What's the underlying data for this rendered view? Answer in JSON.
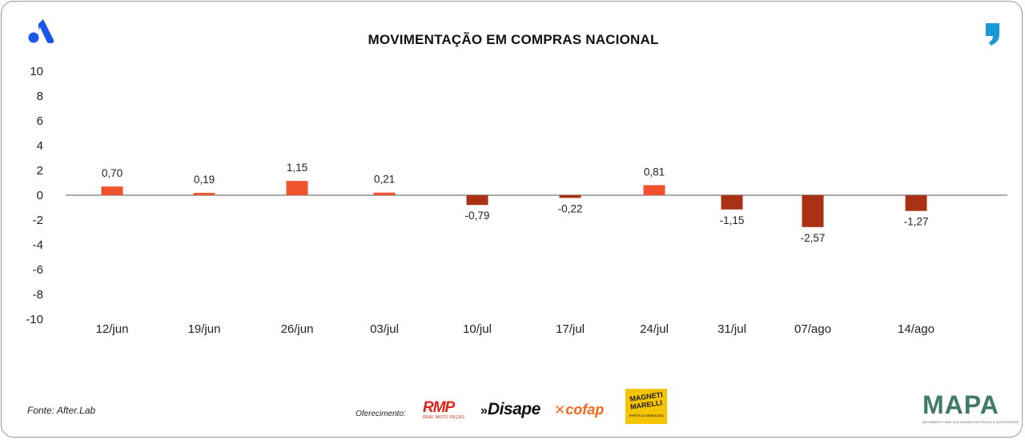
{
  "colors": {
    "positive": "#f0522d",
    "negative": "#a93214",
    "axis_line": "#777777",
    "brand_blue": "#1a57e8",
    "quote_blue": "#1b9ad7",
    "magneti_yellow": "#f4c400"
  },
  "chart_data": {
    "type": "bar",
    "title": "MOVIMENTAÇÃO EM COMPRAS NACIONAL",
    "xlabel": "",
    "ylabel": "",
    "ylim": [
      -10,
      10
    ],
    "yticks": [
      "10",
      "8",
      "6",
      "4",
      "2",
      "0",
      "-2",
      "-4",
      "-6",
      "-8",
      "-10"
    ],
    "categories": [
      "12/jun",
      "19/jun",
      "26/jun",
      "03/jul",
      "10/jul",
      "17/jul",
      "24/jul",
      "31/jul",
      "07/ago",
      "14/ago"
    ],
    "values": [
      0.7,
      0.19,
      1.15,
      0.21,
      -0.79,
      -0.22,
      0.81,
      -1.15,
      -2.57,
      -1.27
    ],
    "data_labels": [
      "0,70",
      "0,19",
      "1,15",
      "0,21",
      "-0,79",
      "-0,22",
      "0,81",
      "-1,15",
      "-2,57",
      "-1,27"
    ]
  },
  "footer": {
    "source": "Fonte: After.Lab",
    "sponsor_label": "Oferecimento:",
    "sponsors": {
      "rmp": "RMP",
      "rmp_sub": "REAL MOTO PEÇAS",
      "disape": "Disape",
      "cofap": "cofap",
      "magneti_line1": "MAGNETI",
      "magneti_line2": "MARELLI",
      "magneti_sub": "PARTS & SERVICES"
    },
    "mapa": "MAPA",
    "mapa_sub": "MOVIMENTO DAS ATIVIDADES EM PEÇAS E ACESSÓRIOS"
  }
}
